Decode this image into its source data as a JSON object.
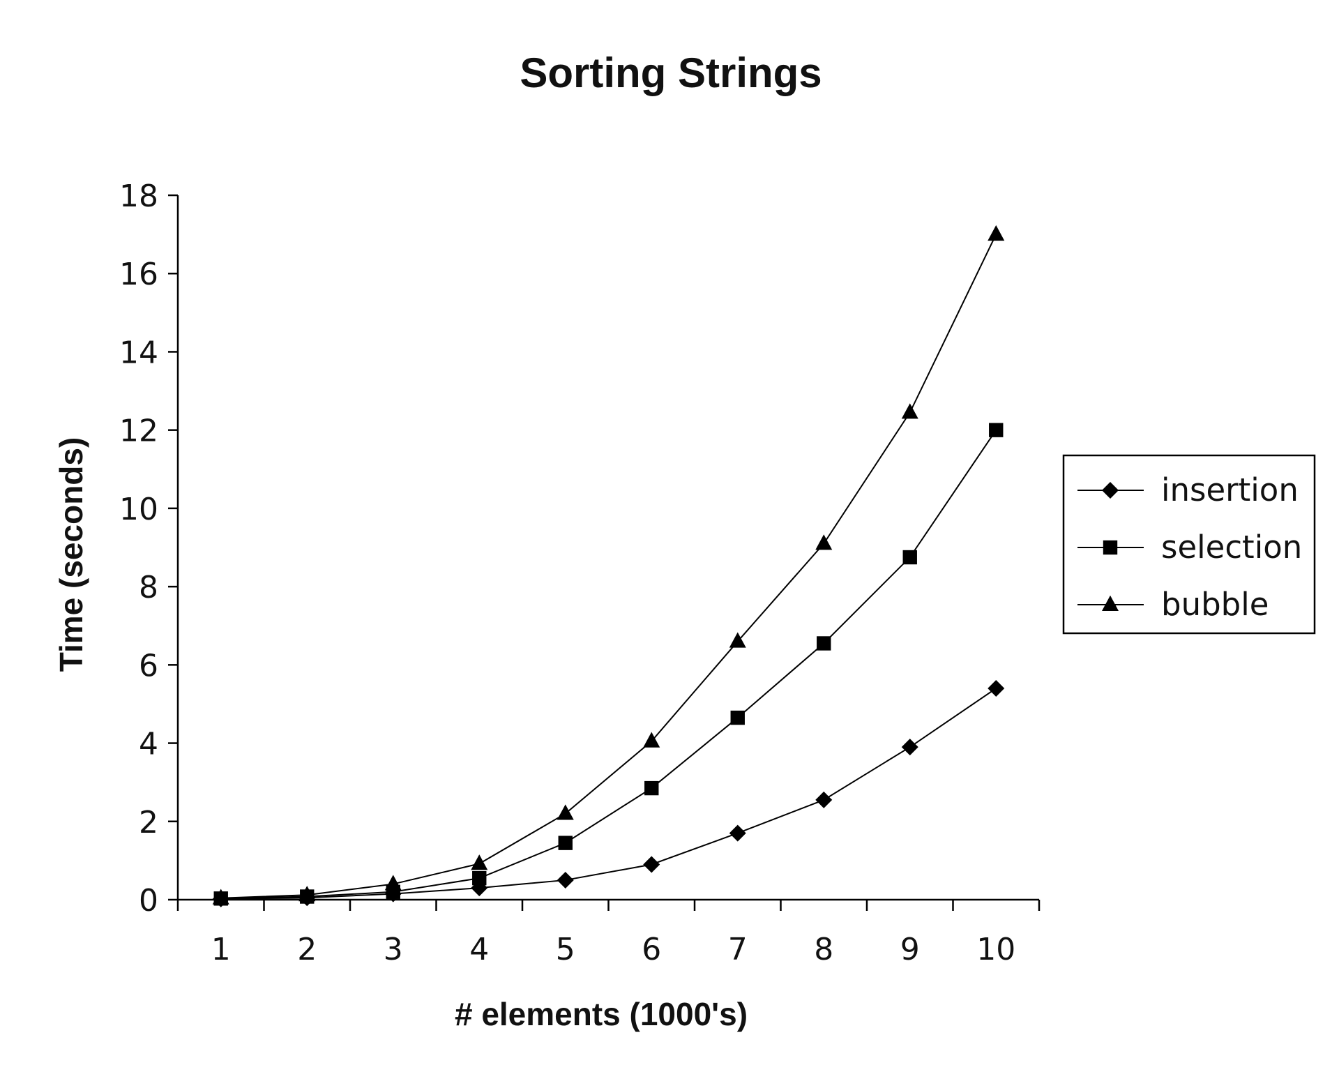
{
  "chart_data": {
    "type": "line",
    "title": "Sorting Strings",
    "xlabel": "# elements (1000's)",
    "ylabel": "Time (seconds)",
    "categories": [
      "1",
      "2",
      "3",
      "4",
      "5",
      "6",
      "7",
      "8",
      "9",
      "10"
    ],
    "ylim": [
      0,
      18
    ],
    "yticks": [
      "0",
      "2",
      "4",
      "6",
      "8",
      "10",
      "12",
      "14",
      "16",
      "18"
    ],
    "grid": false,
    "legend_position": "right",
    "series": [
      {
        "name": "insertion",
        "marker": "diamond",
        "color": "#000000",
        "values": [
          0.02,
          0.05,
          0.15,
          0.3,
          0.5,
          0.9,
          1.7,
          2.55,
          3.9,
          5.4
        ]
      },
      {
        "name": "selection",
        "marker": "square",
        "color": "#000000",
        "values": [
          0.03,
          0.08,
          0.2,
          0.55,
          1.45,
          2.85,
          4.65,
          6.55,
          8.75,
          12.0
        ]
      },
      {
        "name": "bubble",
        "marker": "triangle",
        "color": "#000000",
        "values": [
          0.04,
          0.12,
          0.4,
          0.92,
          2.2,
          4.05,
          6.6,
          9.1,
          12.45,
          17.0
        ]
      }
    ]
  }
}
